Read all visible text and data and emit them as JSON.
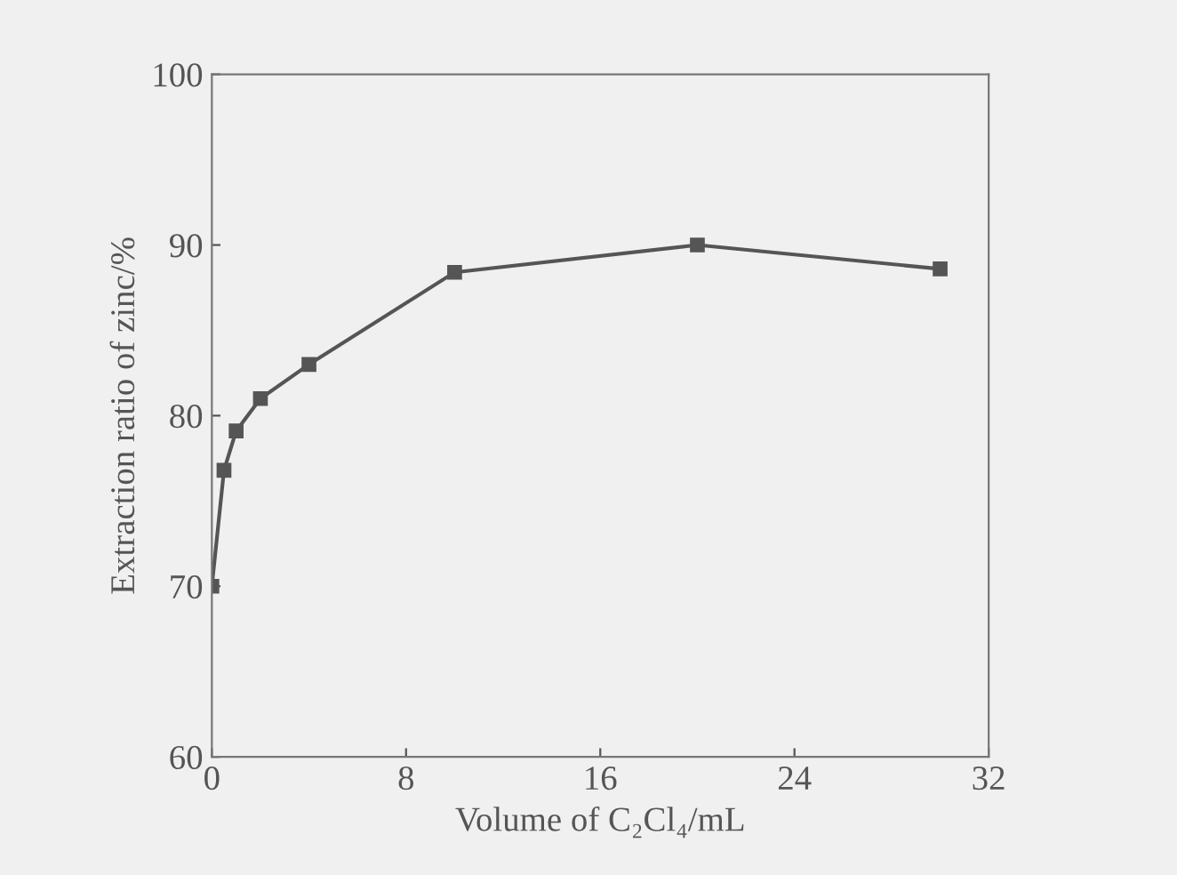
{
  "chart_data": {
    "type": "line",
    "xlabel": "Volume of C₂Cl₄/mL",
    "ylabel": "Extraction ratio of zinc/%",
    "x": [
      0,
      0.5,
      1,
      2,
      4,
      10,
      20,
      30
    ],
    "series": [
      {
        "color": "#555555",
        "values": [
          70,
          76.8,
          79.1,
          81.0,
          83.0,
          88.4,
          90.0,
          88.6
        ]
      }
    ],
    "xlim": [
      0,
      32
    ],
    "xticks": [
      0,
      8,
      16,
      24,
      32
    ],
    "ylim": [
      60,
      100
    ],
    "yticks": [
      60,
      70,
      80,
      90,
      100
    ],
    "marker": "square",
    "line_style": "solid",
    "grid": false,
    "legend": false
  }
}
